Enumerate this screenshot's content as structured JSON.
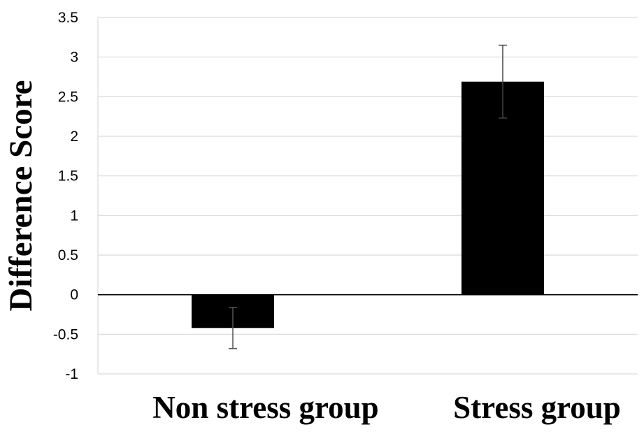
{
  "chart_data": {
    "type": "bar",
    "title": "",
    "xlabel": "",
    "ylabel": "Difference Score",
    "categories": [
      "Non stress group",
      "Stress group"
    ],
    "values": [
      -0.42,
      2.69
    ],
    "error_bars": [
      {
        "low": -0.68,
        "high": -0.16
      },
      {
        "low": 2.23,
        "high": 3.15
      }
    ],
    "ylim": [
      -1,
      3.5
    ],
    "yticks": [
      -1,
      -0.5,
      0,
      0.5,
      1,
      1.5,
      2,
      2.5,
      3,
      3.5
    ],
    "ytick_labels": [
      "-1",
      "-0.5",
      "0",
      "0.5",
      "1",
      "1.5",
      "2",
      "2.5",
      "3",
      "3.5"
    ],
    "grid": true,
    "legend": "none",
    "bar_color": "#000000",
    "grid_color": "#d9d9d9"
  }
}
